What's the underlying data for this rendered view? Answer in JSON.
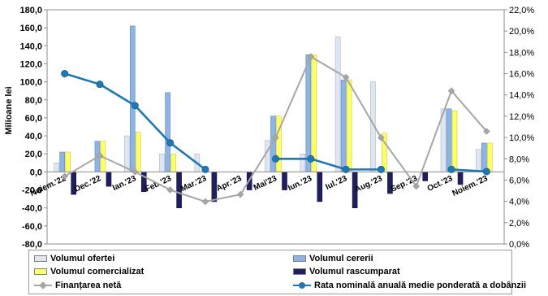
{
  "colors": {
    "ofertei": "#dfe6ef",
    "cererii": "#8eb4e3",
    "comercializat": "#ffff66",
    "rascumparat": "#1f1f5e",
    "finantare": "#a6a6a6",
    "rata": "#1f77b4"
  },
  "legend": [
    {
      "key": "ofertei",
      "label": "Volumul ofertei",
      "kind": "bar"
    },
    {
      "key": "cererii",
      "label": "Volumul cererii",
      "kind": "bar"
    },
    {
      "key": "comercializat",
      "label": "Volumul comercializat",
      "kind": "bar"
    },
    {
      "key": "rascumparat",
      "label": "Volumul rascumparat",
      "kind": "bar"
    },
    {
      "key": "finantare",
      "label": "Finanțarea netă",
      "kind": "line-diamond"
    },
    {
      "key": "rata",
      "label": "Rata nominală anuală medie ponderată a dobânzii",
      "kind": "line-circle"
    }
  ],
  "chart_data": {
    "type": "bar",
    "categories": [
      "Noiem.'22",
      "Dec.'22",
      "Ian.'23",
      "Feb.'23",
      "Mar.'23",
      "Apr.'23",
      "Mai'23",
      "Iun.'23",
      "Iul.'23",
      "Aug.'23",
      "Sep.'23",
      "Oct.'23",
      "Noiem.'23"
    ],
    "ylabel": "Milioane lei",
    "ylim": [
      -80,
      180
    ],
    "yticks": [
      "-80,0",
      "-60,0",
      "-40,0",
      "-20,0",
      "0,0",
      "20,0",
      "40,0",
      "60,0",
      "80,0",
      "100,0",
      "120,0",
      "140,0",
      "160,0",
      "180,0"
    ],
    "y2lim": [
      0,
      22
    ],
    "y2ticks": [
      "0,0%",
      "2,0%",
      "4,0%",
      "6,0%",
      "8,0%",
      "10,0%",
      "12,0%",
      "14,0%",
      "16,0%",
      "18,0%",
      "20,0%",
      "22,0%"
    ],
    "grid": false,
    "legend_position": "bottom",
    "series": [
      {
        "key": "ofertei",
        "name": "Volumul ofertei",
        "axis": "left",
        "type": "bar",
        "values": [
          10,
          0,
          40,
          20,
          20,
          0,
          35,
          20,
          150,
          100,
          0,
          70,
          25
        ]
      },
      {
        "key": "cererii",
        "name": "Volumul cererii",
        "axis": "left",
        "type": "bar",
        "values": [
          22,
          34,
          162,
          88,
          0,
          0,
          62,
          130,
          102,
          0,
          0,
          70,
          32
        ]
      },
      {
        "key": "comercializat",
        "name": "Volumul comercializat",
        "axis": "left",
        "type": "bar",
        "values": [
          22,
          34,
          44,
          20,
          0,
          0,
          62,
          130,
          102,
          43,
          0,
          68,
          32
        ]
      },
      {
        "key": "rascumparat",
        "name": "Volumul rascumparat",
        "axis": "left",
        "type": "bar",
        "values": [
          -25,
          -16,
          -22,
          -40,
          -33,
          -20,
          -20,
          -33,
          -40,
          -24,
          -10,
          -14,
          0
        ]
      },
      {
        "key": "finantare",
        "name": "Finanțarea netă",
        "axis": "left",
        "type": "line",
        "values": [
          -5,
          18,
          0,
          -20,
          -33,
          -25,
          38,
          128,
          105,
          38,
          -16,
          90,
          45
        ]
      },
      {
        "key": "rata",
        "name": "Rata nominală anuală medie ponderată a dobânzii",
        "axis": "right",
        "type": "line",
        "values": [
          16.0,
          15.0,
          13.0,
          9.5,
          7.0,
          null,
          8.0,
          8.0,
          7.0,
          7.0,
          null,
          7.0,
          6.8
        ]
      }
    ]
  }
}
